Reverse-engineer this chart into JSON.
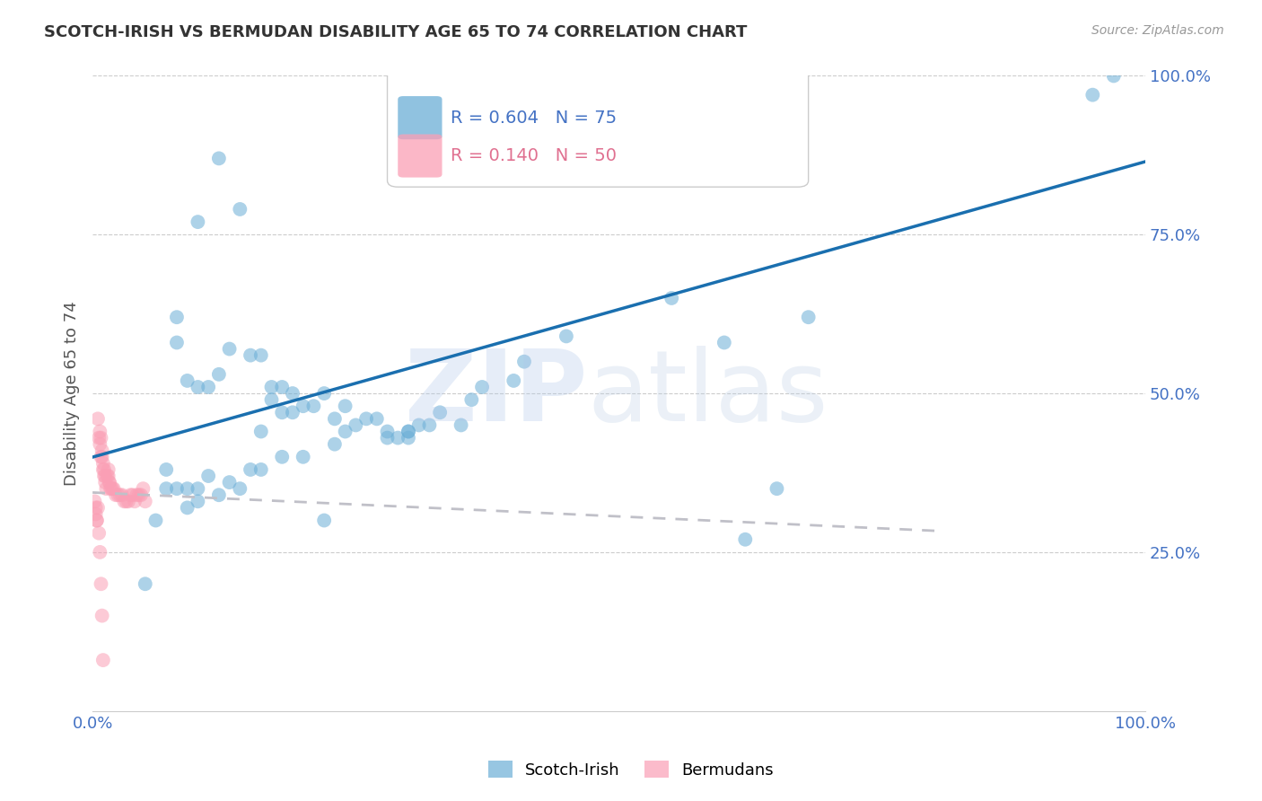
{
  "title": "SCOTCH-IRISH VS BERMUDAN DISABILITY AGE 65 TO 74 CORRELATION CHART",
  "source": "Source: ZipAtlas.com",
  "ylabel": "Disability Age 65 to 74",
  "legend_blue_label": "Scotch-Irish",
  "legend_pink_label": "Bermudans",
  "R_blue": 0.604,
  "N_blue": 75,
  "R_pink": 0.14,
  "N_pink": 50,
  "blue_color": "#6baed6",
  "pink_color": "#fa9fb5",
  "blue_line_color": "#1a6faf",
  "pink_line_color": "#c0c0c8",
  "title_color": "#333333",
  "axis_label_color": "#555555",
  "tick_label_color": "#4472c4",
  "blue_scatter_x": [
    0.32,
    0.33,
    0.37,
    0.37,
    0.39,
    0.4,
    0.12,
    0.14,
    0.1,
    0.08,
    0.08,
    0.09,
    0.1,
    0.11,
    0.12,
    0.13,
    0.15,
    0.16,
    0.17,
    0.17,
    0.18,
    0.18,
    0.19,
    0.19,
    0.2,
    0.21,
    0.22,
    0.23,
    0.24,
    0.24,
    0.25,
    0.26,
    0.27,
    0.28,
    0.28,
    0.29,
    0.3,
    0.3,
    0.31,
    0.32,
    0.33,
    0.35,
    0.36,
    0.37,
    0.4,
    0.41,
    0.45,
    0.55,
    0.6,
    0.65,
    0.62,
    0.68,
    0.05,
    0.06,
    0.07,
    0.07,
    0.08,
    0.09,
    0.09,
    0.1,
    0.1,
    0.11,
    0.12,
    0.13,
    0.14,
    0.15,
    0.16,
    0.18,
    0.2,
    0.22,
    0.95,
    0.97,
    0.16,
    0.23,
    0.3
  ],
  "blue_scatter_y": [
    0.97,
    0.97,
    0.97,
    0.97,
    0.97,
    0.97,
    0.87,
    0.79,
    0.77,
    0.62,
    0.58,
    0.52,
    0.51,
    0.51,
    0.53,
    0.57,
    0.56,
    0.56,
    0.49,
    0.51,
    0.51,
    0.47,
    0.47,
    0.5,
    0.48,
    0.48,
    0.5,
    0.46,
    0.48,
    0.44,
    0.45,
    0.46,
    0.46,
    0.44,
    0.43,
    0.43,
    0.44,
    0.44,
    0.45,
    0.45,
    0.47,
    0.45,
    0.49,
    0.51,
    0.52,
    0.55,
    0.59,
    0.65,
    0.58,
    0.35,
    0.27,
    0.62,
    0.2,
    0.3,
    0.35,
    0.38,
    0.35,
    0.32,
    0.35,
    0.33,
    0.35,
    0.37,
    0.34,
    0.36,
    0.35,
    0.38,
    0.38,
    0.4,
    0.4,
    0.3,
    0.97,
    1.0,
    0.44,
    0.42,
    0.43
  ],
  "pink_scatter_x": [
    0.005,
    0.006,
    0.007,
    0.007,
    0.008,
    0.008,
    0.009,
    0.009,
    0.01,
    0.01,
    0.011,
    0.011,
    0.012,
    0.012,
    0.013,
    0.014,
    0.015,
    0.015,
    0.016,
    0.016,
    0.017,
    0.018,
    0.019,
    0.02,
    0.022,
    0.024,
    0.026,
    0.028,
    0.03,
    0.032,
    0.034,
    0.036,
    0.038,
    0.04,
    0.042,
    0.044,
    0.046,
    0.048,
    0.05,
    0.002,
    0.003,
    0.003,
    0.004,
    0.004,
    0.005,
    0.006,
    0.007,
    0.008,
    0.009,
    0.01
  ],
  "pink_scatter_y": [
    0.46,
    0.43,
    0.42,
    0.44,
    0.43,
    0.4,
    0.4,
    0.41,
    0.39,
    0.38,
    0.38,
    0.37,
    0.36,
    0.37,
    0.35,
    0.37,
    0.38,
    0.37,
    0.36,
    0.36,
    0.35,
    0.35,
    0.35,
    0.35,
    0.34,
    0.34,
    0.34,
    0.34,
    0.33,
    0.33,
    0.33,
    0.34,
    0.34,
    0.33,
    0.34,
    0.34,
    0.34,
    0.35,
    0.33,
    0.33,
    0.32,
    0.31,
    0.3,
    0.3,
    0.32,
    0.28,
    0.25,
    0.2,
    0.15,
    0.08
  ]
}
